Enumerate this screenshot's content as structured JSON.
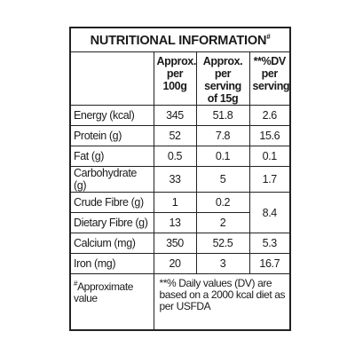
{
  "title": "NUTRITIONAL INFORMATION",
  "title_mark": "#",
  "table": {
    "headers": [
      [
        "Approx.",
        "per",
        "100g"
      ],
      [
        "Approx.",
        "per serving",
        "of 15g"
      ],
      [
        "**%DV",
        "per",
        "serving"
      ]
    ],
    "rows": [
      [
        "Energy (kcal)",
        "345",
        "51.8",
        "2.6"
      ],
      [
        "Protein (g)",
        "52",
        "7.8",
        "15.6"
      ],
      [
        "Fat (g)",
        "0.5",
        "0.1",
        "0.1"
      ],
      [
        "Carbohydrate (g)",
        "33",
        "5",
        "1.7"
      ],
      [
        "Crude Fibre (g)",
        "1",
        "0.2",
        "8.4"
      ],
      [
        "Dietary Fibre (g)",
        "13",
        "2"
      ],
      [
        "Calcium (mg)",
        "350",
        "52.5",
        "5.3"
      ],
      [
        "Iron (mg)",
        "20",
        "3",
        "16.7"
      ]
    ]
  },
  "footer": {
    "mark": "#",
    "left": "Approximate value",
    "right": "**% Daily values (DV) are based on a 2000 kcal diet as per USFDA"
  }
}
